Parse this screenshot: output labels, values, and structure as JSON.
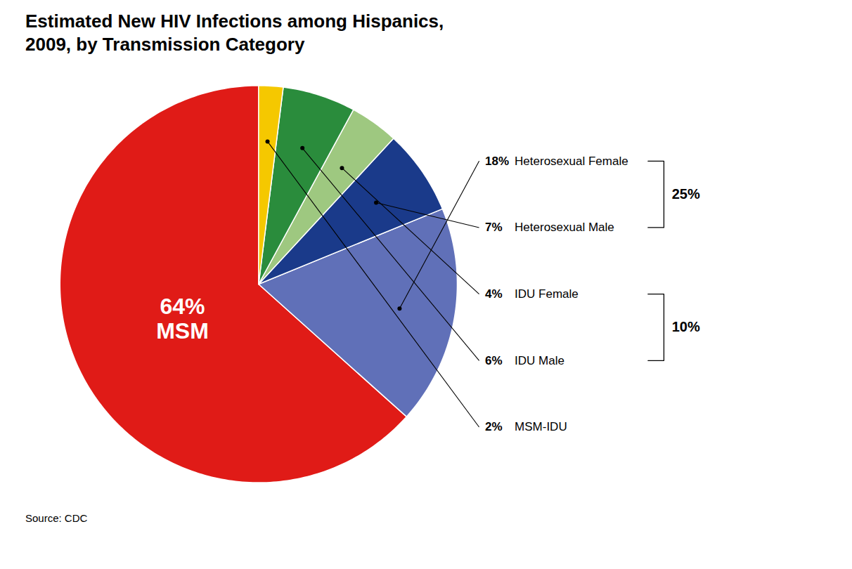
{
  "chart_data": {
    "type": "pie",
    "title": "Estimated New HIV Infections among Hispanics,\n2009, by Transmission Category",
    "categories": [
      "MSM",
      "Heterosexual Female",
      "Heterosexual Male",
      "IDU Female",
      "IDU Male",
      "MSM-IDU"
    ],
    "values": [
      64,
      18,
      7,
      4,
      6,
      2
    ],
    "colors": [
      "#E01B17",
      "#6070B8",
      "#1A3A8A",
      "#9EC880",
      "#2A8C3C",
      "#F5C800"
    ],
    "data_labels": true,
    "value_labels": [
      "64%",
      "18%",
      "7%",
      "4%",
      "6%",
      "2%"
    ],
    "annotations": [
      {
        "text": "25%",
        "categories": [
          "Heterosexual Female",
          "Heterosexual Male"
        ]
      },
      {
        "text": "10%",
        "categories": [
          "IDU Female",
          "IDU Male"
        ]
      }
    ],
    "caption": "Source: CDC"
  }
}
